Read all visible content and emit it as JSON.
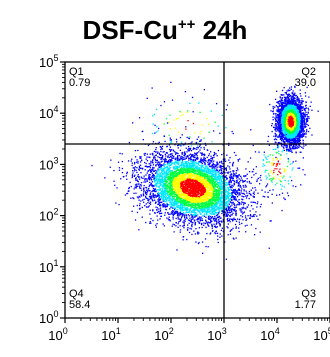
{
  "chart_data": {
    "type": "scatter",
    "subtype": "flow-cytometry-density-dot-plot",
    "title": {
      "main": "DSF-Cu",
      "superscript": "++",
      "suffix": " 24h"
    },
    "xlabel": "",
    "ylabel": "",
    "x_scale": "log",
    "y_scale": "log",
    "xlim": [
      1,
      100000
    ],
    "ylim": [
      1,
      100000
    ],
    "x_ticks": [
      {
        "base": "10",
        "exp": "0"
      },
      {
        "base": "10",
        "exp": "1"
      },
      {
        "base": "10",
        "exp": "2"
      },
      {
        "base": "10",
        "exp": "3"
      },
      {
        "base": "10",
        "exp": "4"
      },
      {
        "base": "10",
        "exp": "5"
      }
    ],
    "y_ticks": [
      {
        "base": "10",
        "exp": "0"
      },
      {
        "base": "10",
        "exp": "1"
      },
      {
        "base": "10",
        "exp": "2"
      },
      {
        "base": "10",
        "exp": "3"
      },
      {
        "base": "10",
        "exp": "4"
      },
      {
        "base": "10",
        "exp": "5"
      }
    ],
    "gate": {
      "x": 1000,
      "y": 2500
    },
    "quadrants": [
      {
        "name": "Q1",
        "value": "0.79",
        "position": "top-left"
      },
      {
        "name": "Q2",
        "value": "39.0",
        "position": "top-right"
      },
      {
        "name": "Q3",
        "value": "1.77",
        "position": "bottom-right"
      },
      {
        "name": "Q4",
        "value": "58.4",
        "position": "bottom-left"
      }
    ],
    "populations": [
      {
        "center_log": [
          2.4,
          2.55
        ],
        "sd_log": [
          0.32,
          0.5
        ],
        "rotation_deg": -72,
        "fraction": 0.584
      },
      {
        "center_log": [
          4.25,
          3.85
        ],
        "sd_log": [
          0.12,
          0.22
        ],
        "rotation_deg": 0,
        "fraction": 0.39
      },
      {
        "center_log": [
          4.0,
          2.95
        ],
        "sd_log": [
          0.2,
          0.28
        ],
        "rotation_deg": 0,
        "fraction": 0.0177
      },
      {
        "center_log": [
          2.3,
          3.8
        ],
        "sd_log": [
          0.5,
          0.3
        ],
        "rotation_deg": 0,
        "fraction": 0.0079
      }
    ],
    "colors": {
      "density_low": "#0000ff",
      "density_mid": "#00e5ff",
      "density_mid2": "#00ff40",
      "density_high": "#ffff00",
      "density_peak": "#ff0000",
      "axis": "#000000"
    },
    "grid": false
  }
}
